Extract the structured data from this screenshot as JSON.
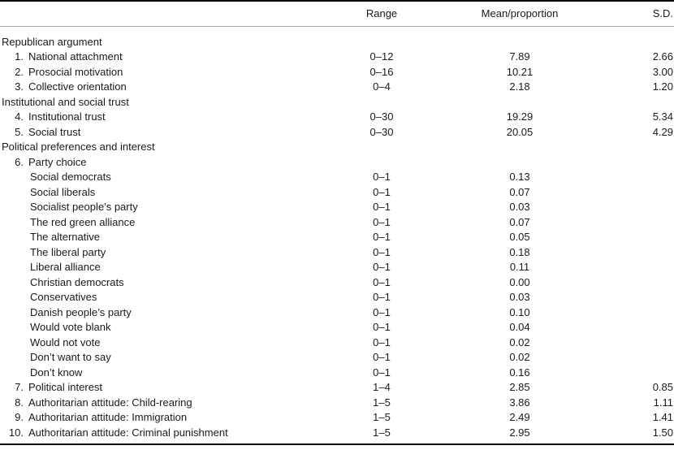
{
  "table": {
    "columns": {
      "label": "",
      "range": "Range",
      "mean": "Mean/proportion",
      "sd": "S.D."
    },
    "rows": [
      {
        "type": "section",
        "num": "",
        "label": "Republican argument",
        "range": "",
        "mean": "",
        "sd": ""
      },
      {
        "type": "item",
        "num": "1.",
        "label": "National attachment",
        "range": "0–12",
        "mean": "7.89",
        "sd": "2.66"
      },
      {
        "type": "item",
        "num": "2.",
        "label": "Prosocial motivation",
        "range": "0–16",
        "mean": "10.21",
        "sd": "3.00"
      },
      {
        "type": "item",
        "num": "3.",
        "label": "Collective orientation",
        "range": "0–4",
        "mean": "2.18",
        "sd": "1.20"
      },
      {
        "type": "section",
        "num": "",
        "label": "Institutional and social trust",
        "range": "",
        "mean": "",
        "sd": ""
      },
      {
        "type": "item",
        "num": "4.",
        "label": "Institutional trust",
        "range": "0–30",
        "mean": "19.29",
        "sd": "5.34"
      },
      {
        "type": "item",
        "num": "5.",
        "label": "Social trust",
        "range": "0–30",
        "mean": "20.05",
        "sd": "4.29"
      },
      {
        "type": "section",
        "num": "",
        "label": "Political preferences and interest",
        "range": "",
        "mean": "",
        "sd": ""
      },
      {
        "type": "item",
        "num": "6.",
        "label": "Party choice",
        "range": "",
        "mean": "",
        "sd": ""
      },
      {
        "type": "subitem",
        "num": "",
        "label": "Social democrats",
        "range": "0–1",
        "mean": "0.13",
        "sd": ""
      },
      {
        "type": "subitem",
        "num": "",
        "label": "Social liberals",
        "range": "0–1",
        "mean": "0.07",
        "sd": ""
      },
      {
        "type": "subitem",
        "num": "",
        "label": "Socialist people’s party",
        "range": "0–1",
        "mean": "0.03",
        "sd": ""
      },
      {
        "type": "subitem",
        "num": "",
        "label": "The red green alliance",
        "range": "0–1",
        "mean": "0.07",
        "sd": ""
      },
      {
        "type": "subitem",
        "num": "",
        "label": "The alternative",
        "range": "0–1",
        "mean": "0.05",
        "sd": ""
      },
      {
        "type": "subitem",
        "num": "",
        "label": "The liberal party",
        "range": "0–1",
        "mean": "0.18",
        "sd": ""
      },
      {
        "type": "subitem",
        "num": "",
        "label": "Liberal alliance",
        "range": "0–1",
        "mean": "0.11",
        "sd": ""
      },
      {
        "type": "subitem",
        "num": "",
        "label": "Christian democrats",
        "range": "0–1",
        "mean": "0.00",
        "sd": ""
      },
      {
        "type": "subitem",
        "num": "",
        "label": "Conservatives",
        "range": "0–1",
        "mean": "0.03",
        "sd": ""
      },
      {
        "type": "subitem",
        "num": "",
        "label": "Danish people’s party",
        "range": "0–1",
        "mean": "0.10",
        "sd": ""
      },
      {
        "type": "subitem",
        "num": "",
        "label": "Would vote blank",
        "range": "0–1",
        "mean": "0.04",
        "sd": ""
      },
      {
        "type": "subitem",
        "num": "",
        "label": "Would not vote",
        "range": "0–1",
        "mean": "0.02",
        "sd": ""
      },
      {
        "type": "subitem",
        "num": "",
        "label": "Don’t want to say",
        "range": "0–1",
        "mean": "0.02",
        "sd": ""
      },
      {
        "type": "subitem",
        "num": "",
        "label": "Don’t know",
        "range": "0–1",
        "mean": "0.16",
        "sd": ""
      },
      {
        "type": "item",
        "num": "7.",
        "label": "Political interest",
        "range": "1–4",
        "mean": "2.85",
        "sd": "0.85"
      },
      {
        "type": "item",
        "num": "8.",
        "label": "Authoritarian attitude: Child-rearing",
        "range": "1–5",
        "mean": "3.86",
        "sd": "1.11"
      },
      {
        "type": "item",
        "num": "9.",
        "label": "Authoritarian attitude: Immigration",
        "range": "1–5",
        "mean": "2.49",
        "sd": "1.41"
      },
      {
        "type": "item",
        "num": "10.",
        "label": "Authoritarian attitude: Criminal punishment",
        "range": "1–5",
        "mean": "2.95",
        "sd": "1.50"
      }
    ]
  }
}
